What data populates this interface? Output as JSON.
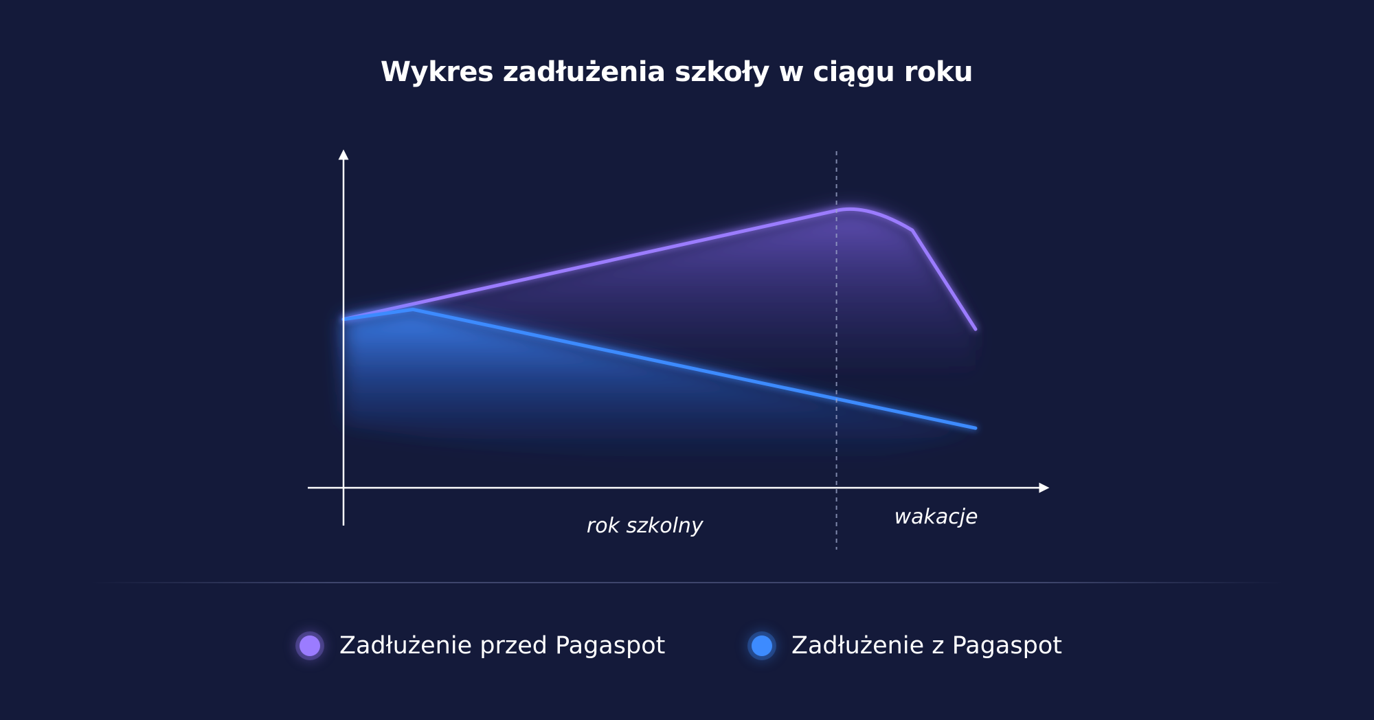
{
  "chart_data": {
    "type": "area",
    "title": "Wykres zadłużenia szkoły w ciągu roku",
    "x_regions": [
      "rok szkolny",
      "wakacje"
    ],
    "xlim": [
      0,
      100
    ],
    "ylim": [
      0,
      100
    ],
    "grid": false,
    "legend_position": "bottom",
    "series": [
      {
        "name": "Zadłużenie przed Pagaspot",
        "color": "#9b7cff",
        "x": [
          0,
          78,
          83,
          90,
          100
        ],
        "y": [
          49,
          82,
          82,
          76,
          46
        ]
      },
      {
        "name": "Zadłużenie z Pagaspot",
        "color": "#3d8bff",
        "x": [
          0,
          11,
          100
        ],
        "y": [
          49,
          52,
          16
        ]
      }
    ],
    "divider_x": 78
  },
  "colors": {
    "background": "#141a3a",
    "axis": "#ffffff"
  }
}
